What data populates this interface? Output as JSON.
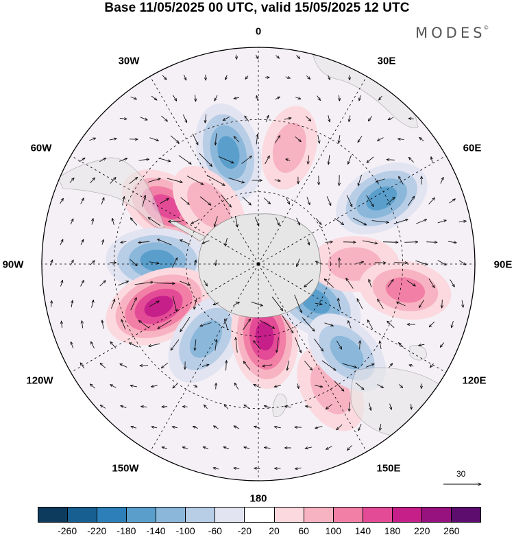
{
  "title": "Base 11/05/2025 00 UTC, valid 15/05/2025 12 UTC",
  "brand": "MODES",
  "brand_mark": "©",
  "longitude_labels": {
    "lon_0": "0",
    "lon_30e": "30E",
    "lon_60e": "60E",
    "lon_90e": "90E",
    "lon_120e": "120E",
    "lon_150e": "150E",
    "lon_180": "180",
    "lon_150w": "150W",
    "lon_120w": "120W",
    "lon_90w": "90W",
    "lon_60w": "60W",
    "lon_30w": "30W"
  },
  "reference_vector_value": "30",
  "colorbar": {
    "colors": [
      "#0d3b5e",
      "#175f91",
      "#2c7fb8",
      "#5a9fcc",
      "#8ab7da",
      "#b8cde6",
      "#e2e4f1",
      "#ffffff",
      "#fbd9de",
      "#f7b3c1",
      "#f27fa6",
      "#e44b96",
      "#c61f8a",
      "#97117f",
      "#5c0d6d"
    ],
    "labels": [
      "-260",
      "-220",
      "-180",
      "-140",
      "-100",
      "-60",
      "-20",
      "20",
      "60",
      "100",
      "140",
      "180",
      "220",
      "260"
    ]
  },
  "anomaly_centers": [
    {
      "lon": -15,
      "lat": -42,
      "value": -150
    },
    {
      "lon": -58,
      "lat": -45,
      "value": 140
    },
    {
      "lon": -88,
      "lat": -48,
      "value": -170
    },
    {
      "lon": -113,
      "lat": -45,
      "value": 215
    },
    {
      "lon": -145,
      "lat": -52,
      "value": -135
    },
    {
      "lon": 175,
      "lat": -60,
      "value": 185
    },
    {
      "lon": 123,
      "lat": -62,
      "value": -160
    },
    {
      "lon": 90,
      "lat": -50,
      "value": 85
    },
    {
      "lon": 100,
      "lat": -28,
      "value": 105
    },
    {
      "lon": 62,
      "lat": -32,
      "value": -140
    },
    {
      "lon": 15,
      "lat": -40,
      "value": 60
    },
    {
      "lon": -40,
      "lat": -58,
      "value": 90
    },
    {
      "lon": 150,
      "lat": -30,
      "value": 95
    },
    {
      "lon": 135,
      "lat": -38,
      "value": -110
    }
  ]
}
